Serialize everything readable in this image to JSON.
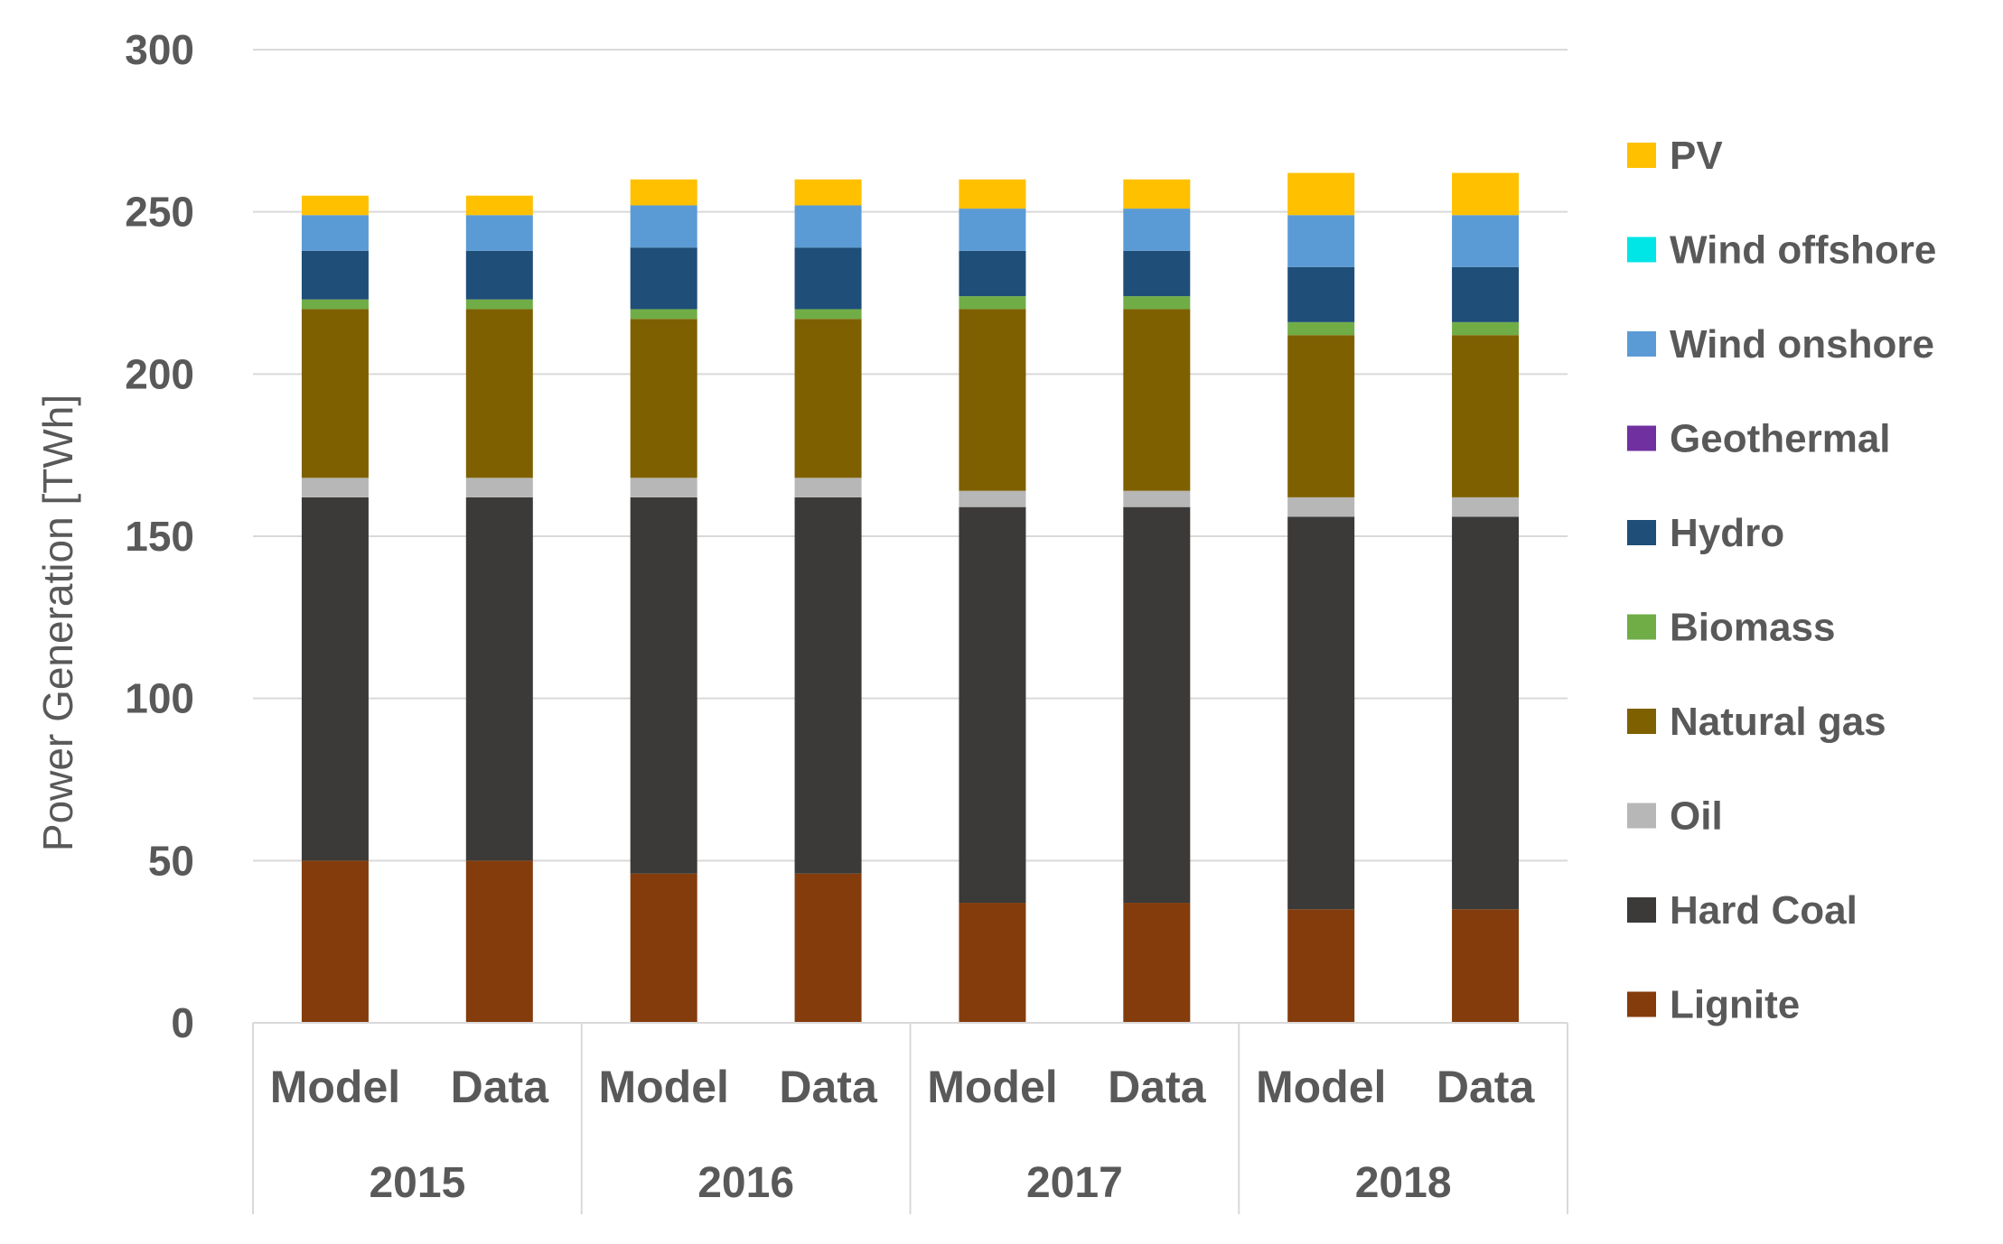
{
  "chart_data": {
    "type": "bar",
    "stacked": true,
    "title": "",
    "xlabel": "",
    "ylabel": "Power Generation [TWh]",
    "ylim": [
      0,
      300
    ],
    "yticks": [
      0,
      50,
      100,
      150,
      200,
      250,
      300
    ],
    "grid": true,
    "legend_position": "right",
    "groups": [
      {
        "year": "2015",
        "bars": [
          "Model",
          "Data"
        ]
      },
      {
        "year": "2016",
        "bars": [
          "Model",
          "Data"
        ]
      },
      {
        "year": "2017",
        "bars": [
          "Model",
          "Data"
        ]
      },
      {
        "year": "2018",
        "bars": [
          "Model",
          "Data"
        ]
      }
    ],
    "categories": [
      "Model",
      "Data",
      "Model",
      "Data",
      "Model",
      "Data",
      "Model",
      "Data"
    ],
    "series": [
      {
        "name": "Lignite",
        "color": "#843c0c",
        "values": [
          50,
          50,
          46,
          46,
          37,
          37,
          35,
          35
        ]
      },
      {
        "name": "Hard Coal",
        "color": "#3b3a39",
        "values": [
          112,
          112,
          116,
          116,
          122,
          122,
          121,
          121
        ]
      },
      {
        "name": "Oil",
        "color": "#b7b7b7",
        "values": [
          6,
          6,
          6,
          6,
          5,
          5,
          6,
          6
        ]
      },
      {
        "name": "Natural gas",
        "color": "#7f6000",
        "values": [
          52,
          52,
          49,
          49,
          56,
          56,
          50,
          50
        ]
      },
      {
        "name": "Biomass",
        "color": "#70ad47",
        "values": [
          3,
          3,
          3,
          3,
          4,
          4,
          4,
          4
        ]
      },
      {
        "name": "Hydro",
        "color": "#1f4e79",
        "values": [
          15,
          15,
          19,
          19,
          14,
          14,
          17,
          17
        ]
      },
      {
        "name": "Geothermal",
        "color": "#7030a0",
        "values": [
          0,
          0,
          0,
          0,
          0,
          0,
          0,
          0
        ]
      },
      {
        "name": "Wind onshore",
        "color": "#5b9bd5",
        "values": [
          11,
          11,
          13,
          13,
          13,
          13,
          16,
          16
        ]
      },
      {
        "name": "Wind offshore",
        "color": "#00e5e5",
        "values": [
          0,
          0,
          0,
          0,
          0,
          0,
          0,
          0
        ]
      },
      {
        "name": "PV",
        "color": "#ffc000",
        "values": [
          6,
          6,
          8,
          8,
          9,
          9,
          13,
          13
        ]
      }
    ]
  }
}
